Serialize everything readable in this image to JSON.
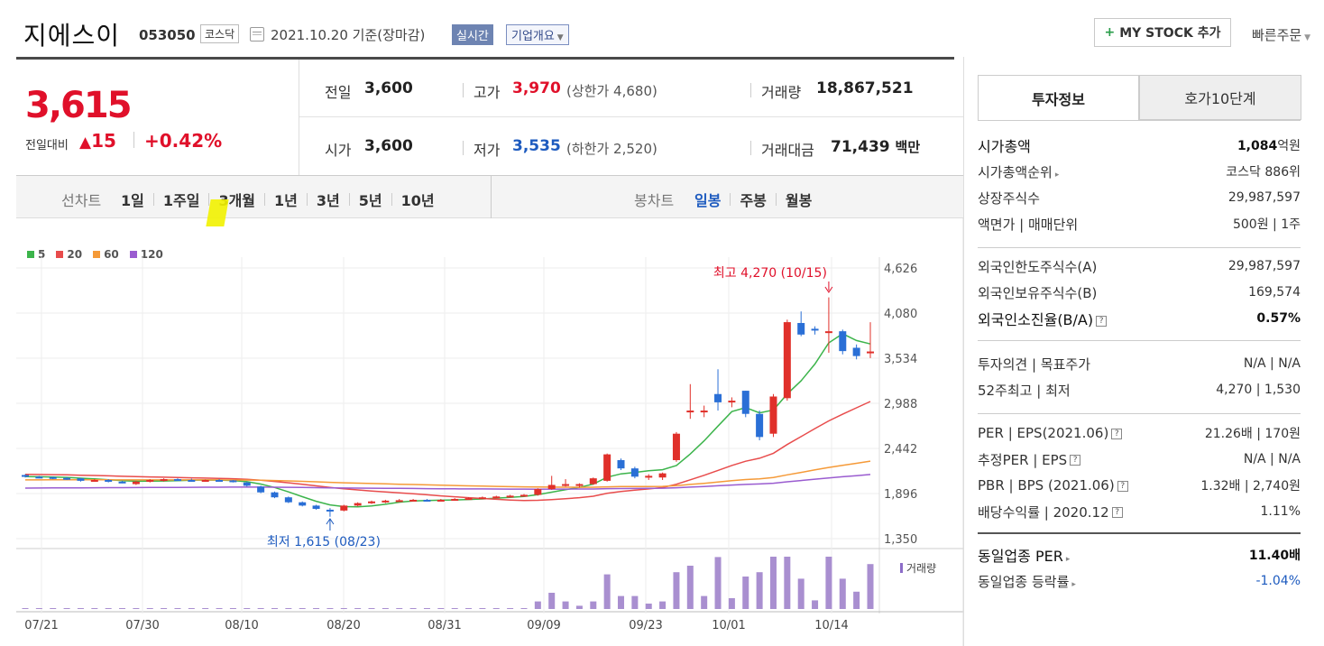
{
  "header": {
    "name": "지에스이",
    "code": "053050",
    "market": "코스닥",
    "date": "2021.10.20",
    "basis": "기준(장마감)",
    "realtime": "실시간",
    "company_info": "기업개요",
    "mystock": "MY STOCK 추가",
    "quick_order": "빠른주문"
  },
  "price": {
    "current": "3,615",
    "change_label": "전일대비",
    "change": "15",
    "change_pct": "+0.42%"
  },
  "info": {
    "prev_label": "전일",
    "prev": "3,600",
    "open_label": "시가",
    "open": "3,600",
    "high_label": "고가",
    "high": "3,970",
    "upper_label": "(상한가",
    "upper": "4,680",
    "upper_close": ")",
    "low_label": "저가",
    "low": "3,535",
    "lower_label": "(하한가",
    "lower": "2,520",
    "lower_close": ")",
    "volume_label": "거래량",
    "volume": "18,867,521",
    "amount_label": "거래대금",
    "amount": "71,439",
    "amount_unit": "백만"
  },
  "toolbar": {
    "line_label": "선차트",
    "periods": [
      "1일",
      "1주일",
      "3개월",
      "1년",
      "3년",
      "5년",
      "10년"
    ],
    "candle_label": "봉차트",
    "candles": [
      "일봉",
      "주봉",
      "월봉"
    ]
  },
  "chart": {
    "legend": [
      {
        "label": "5",
        "color": "#3cb44b"
      },
      {
        "label": "20",
        "color": "#e84c4c"
      },
      {
        "label": "60",
        "color": "#f59a38"
      },
      {
        "label": "120",
        "color": "#9a5cd0"
      }
    ],
    "y_ticks": [
      "4,626",
      "4,080",
      "3,534",
      "2,988",
      "2,442",
      "1,896",
      "1,350"
    ],
    "x_ticks": [
      "07/21",
      "07/30",
      "08/10",
      "08/20",
      "08/31",
      "09/09",
      "09/23",
      "10/01",
      "10/14"
    ],
    "high_note": "최고 4,270 (10/15)",
    "low_note": "최저 1,615 (08/23)",
    "volume_label": "거래량"
  },
  "chart_data": {
    "type": "candlestick",
    "ylim": [
      1350,
      4626
    ],
    "x": [
      "07/21",
      "07/30",
      "08/10",
      "08/20",
      "08/31",
      "09/09",
      "09/23",
      "10/01",
      "10/14"
    ],
    "candles": [
      [
        2120,
        2130,
        2090,
        2100
      ],
      [
        2100,
        2110,
        2080,
        2095
      ],
      [
        2095,
        2100,
        2070,
        2085
      ],
      [
        2085,
        2095,
        2060,
        2080
      ],
      [
        2080,
        2085,
        2040,
        2050
      ],
      [
        2050,
        2070,
        2040,
        2060
      ],
      [
        2060,
        2070,
        2030,
        2040
      ],
      [
        2040,
        2050,
        2020,
        2030
      ],
      [
        2010,
        2050,
        2000,
        2040
      ],
      [
        2040,
        2070,
        2030,
        2060
      ],
      [
        2060,
        2080,
        2040,
        2070
      ],
      [
        2070,
        2080,
        2050,
        2060
      ],
      [
        2060,
        2075,
        2040,
        2050
      ],
      [
        2050,
        2065,
        2040,
        2060
      ],
      [
        2060,
        2070,
        2050,
        2055
      ],
      [
        2055,
        2060,
        2030,
        2040
      ],
      [
        2030,
        2040,
        1980,
        1990
      ],
      [
        1980,
        1990,
        1900,
        1910
      ],
      [
        1910,
        1920,
        1840,
        1850
      ],
      [
        1850,
        1860,
        1780,
        1790
      ],
      [
        1790,
        1800,
        1740,
        1750
      ],
      [
        1750,
        1760,
        1700,
        1710
      ],
      [
        1700,
        1720,
        1615,
        1690
      ],
      [
        1690,
        1760,
        1680,
        1750
      ],
      [
        1750,
        1790,
        1740,
        1780
      ],
      [
        1780,
        1810,
        1770,
        1800
      ],
      [
        1800,
        1820,
        1780,
        1810
      ],
      [
        1810,
        1830,
        1800,
        1815
      ],
      [
        1815,
        1830,
        1800,
        1820
      ],
      [
        1820,
        1830,
        1800,
        1810
      ],
      [
        1810,
        1830,
        1800,
        1820
      ],
      [
        1820,
        1840,
        1810,
        1830
      ],
      [
        1830,
        1850,
        1820,
        1840
      ],
      [
        1840,
        1860,
        1830,
        1850
      ],
      [
        1850,
        1870,
        1840,
        1860
      ],
      [
        1860,
        1880,
        1850,
        1870
      ],
      [
        1870,
        1890,
        1860,
        1880
      ],
      [
        1880,
        1960,
        1870,
        1950
      ],
      [
        1950,
        2110,
        1940,
        2000
      ],
      [
        1990,
        2070,
        1980,
        2010
      ],
      [
        2000,
        2020,
        1970,
        2010
      ],
      [
        2010,
        2090,
        2000,
        2080
      ],
      [
        2050,
        2380,
        2040,
        2370
      ],
      [
        2300,
        2320,
        2180,
        2200
      ],
      [
        2200,
        2220,
        2080,
        2100
      ],
      [
        2100,
        2130,
        2060,
        2110
      ],
      [
        2090,
        2150,
        2060,
        2140
      ],
      [
        2300,
        2640,
        2280,
        2620
      ],
      [
        2880,
        3220,
        2800,
        2900
      ],
      [
        2880,
        2960,
        2820,
        2900
      ],
      [
        3100,
        3400,
        2900,
        3000
      ],
      [
        3000,
        3060,
        2940,
        3020
      ],
      [
        3140,
        3140,
        2820,
        2860
      ],
      [
        2860,
        2900,
        2540,
        2580
      ],
      [
        2620,
        3100,
        2580,
        3070
      ],
      [
        3050,
        4000,
        3020,
        3970
      ],
      [
        3960,
        4100,
        3800,
        3820
      ],
      [
        3890,
        3920,
        3820,
        3880
      ],
      [
        3850,
        4270,
        3600,
        3860
      ],
      [
        3860,
        3880,
        3580,
        3620
      ],
      [
        3660,
        3700,
        3520,
        3560
      ],
      [
        3600,
        3970,
        3535,
        3615
      ]
    ],
    "ma5_note": "moving averages shown: 5, 20, 60, 120"
  },
  "right": {
    "tab_invest": "투자정보",
    "tab_hoga": "호가10단계",
    "g1": [
      {
        "label": "시가총액",
        "value": "1,084",
        "unit": "억원",
        "bold": true
      },
      {
        "label": "시가총액순위",
        "value": "코스닥 886위",
        "arrow": true
      },
      {
        "label": "상장주식수",
        "value": "29,987,597"
      },
      {
        "label": "액면가 | 매매단위",
        "value": "500원 | 1주"
      }
    ],
    "g2": [
      {
        "label": "외국인한도주식수(A)",
        "value": "29,987,597"
      },
      {
        "label": "외국인보유주식수(B)",
        "value": "169,574"
      },
      {
        "label": "외국인소진율(B/A)",
        "value": "0.57%",
        "bold": true,
        "q": true
      }
    ],
    "g3": [
      {
        "label": "투자의견 | 목표주가",
        "value": "N/A | N/A"
      },
      {
        "label": "52주최고 | 최저",
        "value": "4,270 | 1,530"
      }
    ],
    "g4": [
      {
        "label": "PER | EPS(2021.06)",
        "value": "21.26배 | 170원",
        "q": true
      },
      {
        "label": "추정PER | EPS",
        "value": "N/A | N/A",
        "q": true
      },
      {
        "label": "PBR | BPS (2021.06)",
        "value": "1.32배 | 2,740원",
        "q": true
      },
      {
        "label": "배당수익률 | 2020.12",
        "value": "1.11%",
        "q": true
      }
    ],
    "g5": [
      {
        "label": "동일업종 PER",
        "value": "11.40배",
        "bold": true,
        "arrow": true
      },
      {
        "label": "동일업종 등락률",
        "value": "-1.04%",
        "blue": true,
        "arrow": true
      }
    ]
  }
}
